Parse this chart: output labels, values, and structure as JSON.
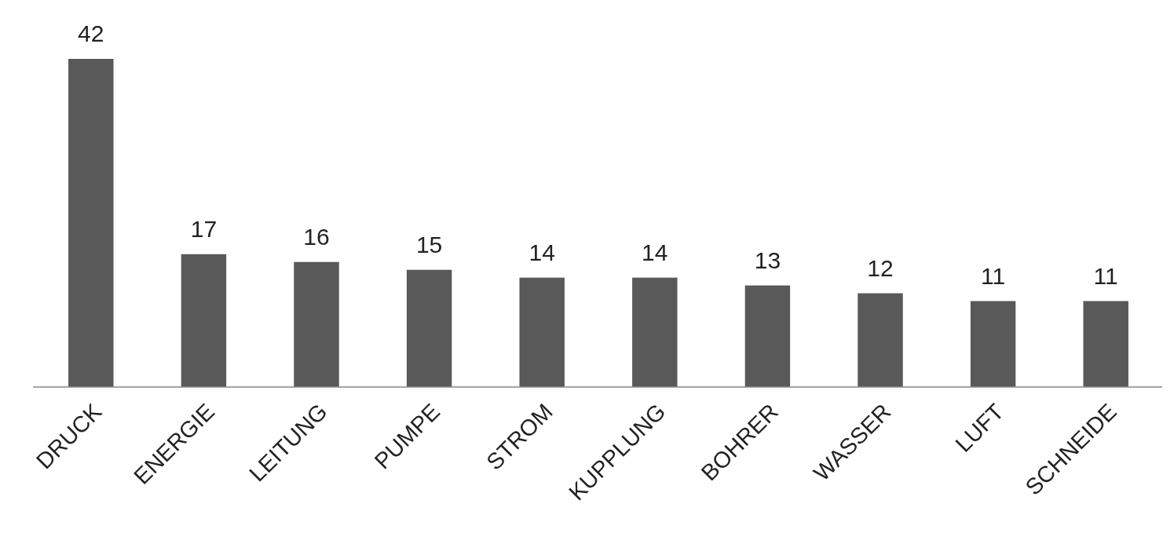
{
  "chart_data": {
    "type": "bar",
    "categories": [
      "DRUCK",
      "ENERGIE",
      "LEITUNG",
      "PUMPE",
      "STROM",
      "KUPPLUNG",
      "BOHRER",
      "WASSER",
      "LUFT",
      "SCHNEIDE"
    ],
    "values": [
      42,
      17,
      16,
      15,
      14,
      14,
      13,
      12,
      11,
      11
    ],
    "color": "#595959",
    "data_labels": true
  }
}
